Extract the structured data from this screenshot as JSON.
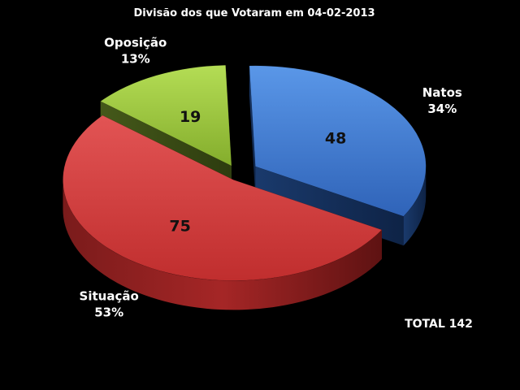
{
  "chart_data": {
    "type": "pie",
    "title": "Divisão dos que Votaram em 04-02-2013",
    "categories": [
      "Natos",
      "Situação",
      "Oposição"
    ],
    "values": [
      48,
      75,
      19
    ],
    "percent_labels": [
      "34%",
      "53%",
      "13%"
    ],
    "value_labels": [
      "48",
      "75",
      "19"
    ],
    "colors": [
      "#3a7bd5",
      "#d63c3c",
      "#98c33a"
    ],
    "style": "3d-exploded",
    "total_label": "TOTAL 142"
  }
}
